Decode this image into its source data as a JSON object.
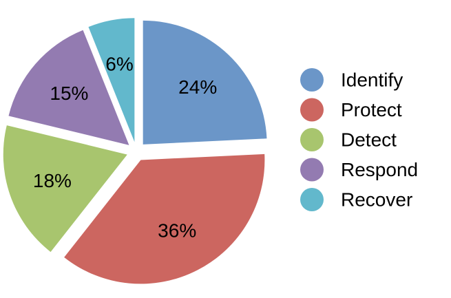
{
  "chart_data": {
    "type": "pie",
    "title": "",
    "legend_position": "right",
    "slices": [
      {
        "label": "Identify",
        "value": 24,
        "value_label": "24%",
        "color": "#6b96c8",
        "exploded": true
      },
      {
        "label": "Protect",
        "value": 36,
        "value_label": "36%",
        "color": "#cc6660",
        "exploded": true
      },
      {
        "label": "Detect",
        "value": 18,
        "value_label": "18%",
        "color": "#a8c56e",
        "exploded": true
      },
      {
        "label": "Respond",
        "value": 15,
        "value_label": "15%",
        "color": "#937bb1",
        "exploded": true
      },
      {
        "label": "Recover",
        "value": 6,
        "value_label": "6%",
        "color": "#62b8cc",
        "exploded": true
      }
    ]
  }
}
